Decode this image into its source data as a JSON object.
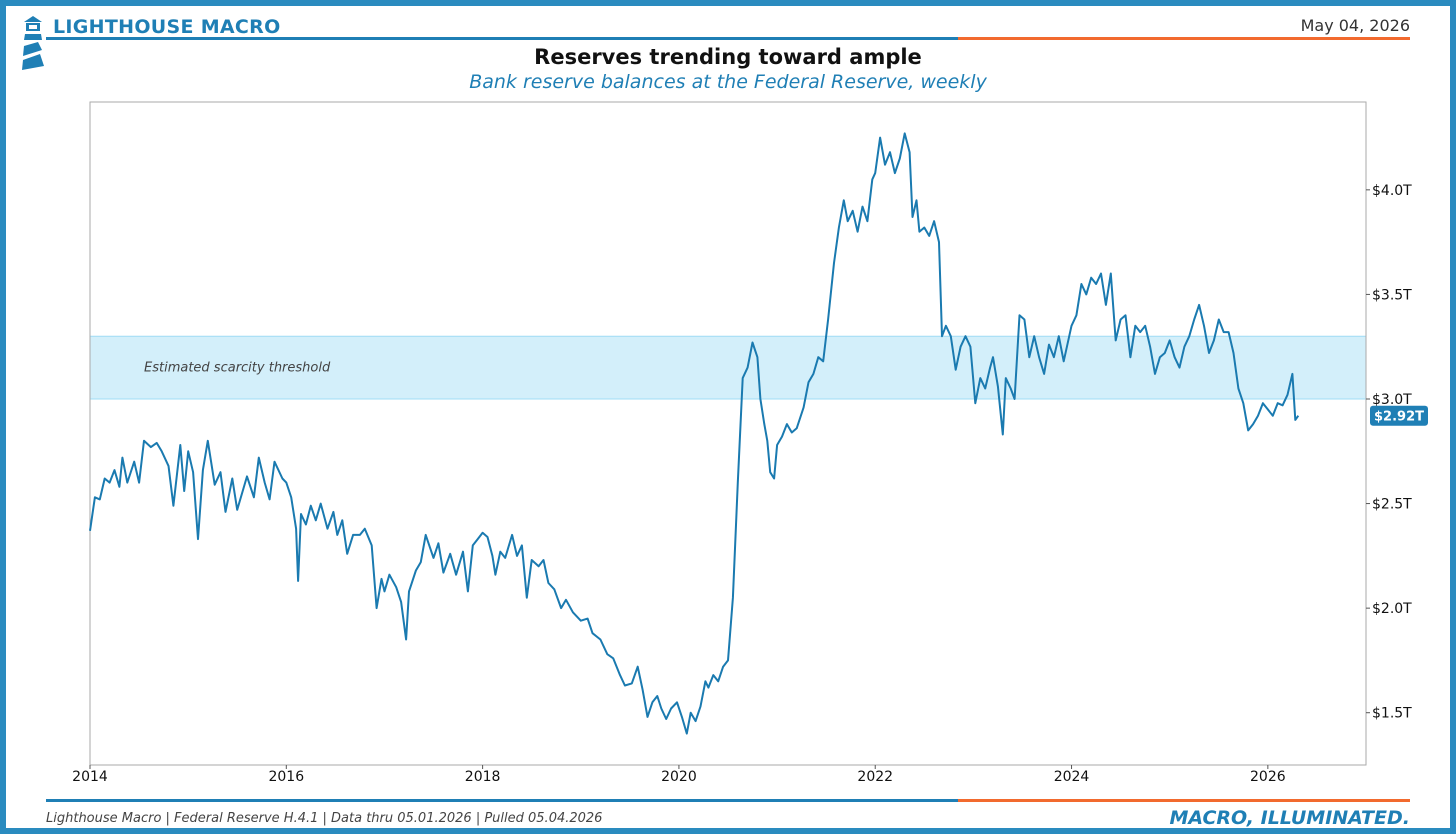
{
  "header": {
    "brand": "LIGHTHOUSE MACRO",
    "date": "May 04, 2026",
    "logo_icon": "lighthouse-icon"
  },
  "colors": {
    "primary": "#1f7fb5",
    "accent": "#f26a2e",
    "line": "#1a7ab0",
    "band": "#d3effa"
  },
  "footer": {
    "source": "Lighthouse Macro | Federal Reserve H.4.1 | Data thru 05.01.2026 | Pulled 05.04.2026",
    "tagline": "MACRO, ILLUMINATED."
  },
  "chart_data": {
    "type": "line",
    "title": "Reserves trending toward ample",
    "subtitle": "Bank reserve balances at the Federal Reserve, weekly",
    "xlabel": "",
    "ylabel": "",
    "x_ticks": [
      "2014",
      "2016",
      "2018",
      "2020",
      "2022",
      "2024",
      "2026"
    ],
    "y_ticks": [
      "$1.5T",
      "$2.0T",
      "$2.5T",
      "$3.0T",
      "$3.5T",
      "$4.0T"
    ],
    "xlim": [
      2014.0,
      2027.0
    ],
    "ylim": [
      1.25,
      4.42
    ],
    "y_axis_side": "right",
    "grid": false,
    "band": {
      "label": "Estimated scarcity threshold",
      "y_range": [
        3.0,
        3.3
      ]
    },
    "last_value_label": "$2.92T",
    "series": [
      {
        "unit": "trillion USD",
        "points": [
          [
            2014.0,
            2.37
          ],
          [
            2014.05,
            2.53
          ],
          [
            2014.1,
            2.52
          ],
          [
            2014.15,
            2.62
          ],
          [
            2014.2,
            2.6
          ],
          [
            2014.25,
            2.66
          ],
          [
            2014.3,
            2.58
          ],
          [
            2014.33,
            2.72
          ],
          [
            2014.38,
            2.6
          ],
          [
            2014.45,
            2.7
          ],
          [
            2014.5,
            2.6
          ],
          [
            2014.55,
            2.8
          ],
          [
            2014.62,
            2.77
          ],
          [
            2014.68,
            2.79
          ],
          [
            2014.73,
            2.75
          ],
          [
            2014.8,
            2.68
          ],
          [
            2014.85,
            2.49
          ],
          [
            2014.92,
            2.78
          ],
          [
            2014.96,
            2.56
          ],
          [
            2015.0,
            2.75
          ],
          [
            2015.05,
            2.65
          ],
          [
            2015.1,
            2.33
          ],
          [
            2015.15,
            2.66
          ],
          [
            2015.2,
            2.8
          ],
          [
            2015.27,
            2.59
          ],
          [
            2015.33,
            2.65
          ],
          [
            2015.38,
            2.46
          ],
          [
            2015.45,
            2.62
          ],
          [
            2015.5,
            2.47
          ],
          [
            2015.6,
            2.63
          ],
          [
            2015.67,
            2.53
          ],
          [
            2015.72,
            2.72
          ],
          [
            2015.78,
            2.6
          ],
          [
            2015.83,
            2.52
          ],
          [
            2015.88,
            2.7
          ],
          [
            2015.96,
            2.62
          ],
          [
            2016.0,
            2.6
          ],
          [
            2016.05,
            2.53
          ],
          [
            2016.1,
            2.38
          ],
          [
            2016.12,
            2.13
          ],
          [
            2016.15,
            2.45
          ],
          [
            2016.2,
            2.4
          ],
          [
            2016.25,
            2.49
          ],
          [
            2016.3,
            2.42
          ],
          [
            2016.35,
            2.5
          ],
          [
            2016.42,
            2.38
          ],
          [
            2016.48,
            2.46
          ],
          [
            2016.52,
            2.35
          ],
          [
            2016.57,
            2.42
          ],
          [
            2016.62,
            2.26
          ],
          [
            2016.68,
            2.35
          ],
          [
            2016.75,
            2.35
          ],
          [
            2016.8,
            2.38
          ],
          [
            2016.87,
            2.3
          ],
          [
            2016.92,
            2.0
          ],
          [
            2016.97,
            2.14
          ],
          [
            2017.0,
            2.08
          ],
          [
            2017.05,
            2.16
          ],
          [
            2017.12,
            2.1
          ],
          [
            2017.17,
            2.03
          ],
          [
            2017.22,
            1.85
          ],
          [
            2017.25,
            2.08
          ],
          [
            2017.32,
            2.18
          ],
          [
            2017.37,
            2.22
          ],
          [
            2017.42,
            2.35
          ],
          [
            2017.5,
            2.24
          ],
          [
            2017.55,
            2.31
          ],
          [
            2017.6,
            2.17
          ],
          [
            2017.67,
            2.26
          ],
          [
            2017.73,
            2.16
          ],
          [
            2017.8,
            2.27
          ],
          [
            2017.85,
            2.08
          ],
          [
            2017.9,
            2.3
          ],
          [
            2017.95,
            2.33
          ],
          [
            2018.0,
            2.36
          ],
          [
            2018.05,
            2.34
          ],
          [
            2018.1,
            2.25
          ],
          [
            2018.13,
            2.16
          ],
          [
            2018.18,
            2.27
          ],
          [
            2018.23,
            2.24
          ],
          [
            2018.3,
            2.35
          ],
          [
            2018.35,
            2.25
          ],
          [
            2018.4,
            2.3
          ],
          [
            2018.45,
            2.05
          ],
          [
            2018.5,
            2.23
          ],
          [
            2018.57,
            2.2
          ],
          [
            2018.62,
            2.23
          ],
          [
            2018.67,
            2.12
          ],
          [
            2018.73,
            2.09
          ],
          [
            2018.8,
            2.0
          ],
          [
            2018.85,
            2.04
          ],
          [
            2018.92,
            1.98
          ],
          [
            2019.0,
            1.94
          ],
          [
            2019.07,
            1.95
          ],
          [
            2019.12,
            1.88
          ],
          [
            2019.2,
            1.85
          ],
          [
            2019.27,
            1.78
          ],
          [
            2019.33,
            1.76
          ],
          [
            2019.4,
            1.68
          ],
          [
            2019.45,
            1.63
          ],
          [
            2019.52,
            1.64
          ],
          [
            2019.58,
            1.72
          ],
          [
            2019.63,
            1.61
          ],
          [
            2019.68,
            1.48
          ],
          [
            2019.73,
            1.55
          ],
          [
            2019.78,
            1.58
          ],
          [
            2019.82,
            1.52
          ],
          [
            2019.87,
            1.47
          ],
          [
            2019.92,
            1.52
          ],
          [
            2019.98,
            1.55
          ],
          [
            2020.03,
            1.48
          ],
          [
            2020.08,
            1.4
          ],
          [
            2020.12,
            1.5
          ],
          [
            2020.17,
            1.46
          ],
          [
            2020.22,
            1.53
          ],
          [
            2020.27,
            1.65
          ],
          [
            2020.3,
            1.62
          ],
          [
            2020.35,
            1.68
          ],
          [
            2020.4,
            1.65
          ],
          [
            2020.45,
            1.72
          ],
          [
            2020.5,
            1.75
          ],
          [
            2020.55,
            2.05
          ],
          [
            2020.6,
            2.6
          ],
          [
            2020.65,
            3.1
          ],
          [
            2020.7,
            3.15
          ],
          [
            2020.75,
            3.27
          ],
          [
            2020.8,
            3.2
          ],
          [
            2020.83,
            3.0
          ],
          [
            2020.87,
            2.88
          ],
          [
            2020.9,
            2.8
          ],
          [
            2020.93,
            2.65
          ],
          [
            2020.97,
            2.62
          ],
          [
            2021.0,
            2.78
          ],
          [
            2021.05,
            2.82
          ],
          [
            2021.1,
            2.88
          ],
          [
            2021.15,
            2.84
          ],
          [
            2021.2,
            2.86
          ],
          [
            2021.27,
            2.96
          ],
          [
            2021.32,
            3.08
          ],
          [
            2021.37,
            3.12
          ],
          [
            2021.42,
            3.2
          ],
          [
            2021.47,
            3.18
          ],
          [
            2021.52,
            3.38
          ],
          [
            2021.58,
            3.65
          ],
          [
            2021.63,
            3.82
          ],
          [
            2021.68,
            3.95
          ],
          [
            2021.72,
            3.85
          ],
          [
            2021.77,
            3.9
          ],
          [
            2021.82,
            3.8
          ],
          [
            2021.87,
            3.92
          ],
          [
            2021.92,
            3.85
          ],
          [
            2021.97,
            4.05
          ],
          [
            2022.0,
            4.08
          ],
          [
            2022.05,
            4.25
          ],
          [
            2022.1,
            4.12
          ],
          [
            2022.15,
            4.18
          ],
          [
            2022.2,
            4.08
          ],
          [
            2022.25,
            4.15
          ],
          [
            2022.3,
            4.27
          ],
          [
            2022.35,
            4.18
          ],
          [
            2022.38,
            3.87
          ],
          [
            2022.42,
            3.95
          ],
          [
            2022.45,
            3.8
          ],
          [
            2022.5,
            3.82
          ],
          [
            2022.55,
            3.78
          ],
          [
            2022.6,
            3.85
          ],
          [
            2022.65,
            3.75
          ],
          [
            2022.68,
            3.3
          ],
          [
            2022.72,
            3.35
          ],
          [
            2022.77,
            3.3
          ],
          [
            2022.82,
            3.14
          ],
          [
            2022.87,
            3.25
          ],
          [
            2022.92,
            3.3
          ],
          [
            2022.97,
            3.25
          ],
          [
            2023.02,
            2.98
          ],
          [
            2023.07,
            3.1
          ],
          [
            2023.12,
            3.05
          ],
          [
            2023.17,
            3.15
          ],
          [
            2023.2,
            3.2
          ],
          [
            2023.25,
            3.06
          ],
          [
            2023.3,
            2.83
          ],
          [
            2023.33,
            3.1
          ],
          [
            2023.38,
            3.05
          ],
          [
            2023.42,
            3.0
          ],
          [
            2023.47,
            3.4
          ],
          [
            2023.52,
            3.38
          ],
          [
            2023.57,
            3.2
          ],
          [
            2023.62,
            3.3
          ],
          [
            2023.67,
            3.2
          ],
          [
            2023.72,
            3.12
          ],
          [
            2023.77,
            3.26
          ],
          [
            2023.82,
            3.2
          ],
          [
            2023.87,
            3.3
          ],
          [
            2023.92,
            3.18
          ],
          [
            2024.0,
            3.35
          ],
          [
            2024.05,
            3.4
          ],
          [
            2024.1,
            3.55
          ],
          [
            2024.15,
            3.5
          ],
          [
            2024.2,
            3.58
          ],
          [
            2024.25,
            3.55
          ],
          [
            2024.3,
            3.6
          ],
          [
            2024.35,
            3.45
          ],
          [
            2024.4,
            3.6
          ],
          [
            2024.45,
            3.28
          ],
          [
            2024.5,
            3.38
          ],
          [
            2024.55,
            3.4
          ],
          [
            2024.6,
            3.2
          ],
          [
            2024.65,
            3.35
          ],
          [
            2024.7,
            3.32
          ],
          [
            2024.75,
            3.35
          ],
          [
            2024.8,
            3.25
          ],
          [
            2024.85,
            3.12
          ],
          [
            2024.9,
            3.2
          ],
          [
            2024.95,
            3.22
          ],
          [
            2025.0,
            3.28
          ],
          [
            2025.05,
            3.2
          ],
          [
            2025.1,
            3.15
          ],
          [
            2025.15,
            3.25
          ],
          [
            2025.2,
            3.3
          ],
          [
            2025.25,
            3.38
          ],
          [
            2025.3,
            3.45
          ],
          [
            2025.35,
            3.35
          ],
          [
            2025.4,
            3.22
          ],
          [
            2025.45,
            3.28
          ],
          [
            2025.5,
            3.38
          ],
          [
            2025.55,
            3.32
          ],
          [
            2025.6,
            3.32
          ],
          [
            2025.65,
            3.22
          ],
          [
            2025.7,
            3.05
          ],
          [
            2025.75,
            2.98
          ],
          [
            2025.8,
            2.85
          ],
          [
            2025.85,
            2.88
          ],
          [
            2025.9,
            2.92
          ],
          [
            2025.95,
            2.98
          ],
          [
            2026.0,
            2.95
          ],
          [
            2026.05,
            2.92
          ],
          [
            2026.1,
            2.98
          ],
          [
            2026.15,
            2.97
          ],
          [
            2026.2,
            3.02
          ],
          [
            2026.25,
            3.12
          ],
          [
            2026.28,
            2.9
          ],
          [
            2026.31,
            2.92
          ]
        ]
      }
    ]
  }
}
